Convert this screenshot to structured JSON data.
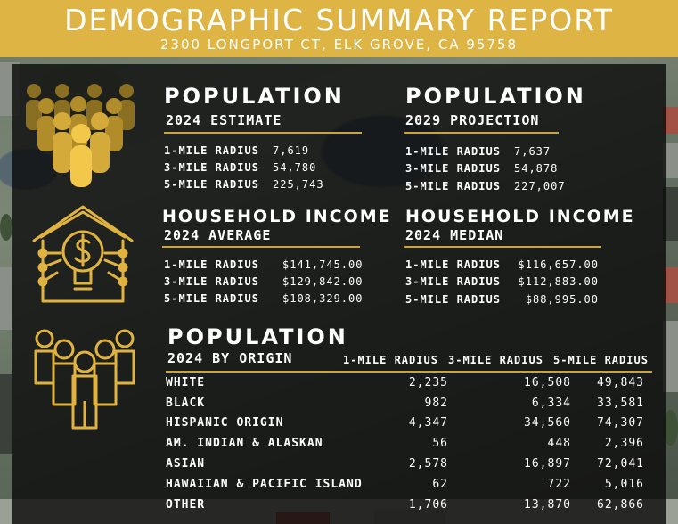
{
  "header": {
    "title": "DEMOGRAPHIC SUMMARY REPORT",
    "address": "2300 LONGPORT CT, ELK GROVE, CA 95758"
  },
  "population_2024": {
    "title": "POPULATION",
    "subtitle": "2024 ESTIMATE",
    "rows": [
      {
        "label": "1-MILE RADIUS",
        "value": "7,619"
      },
      {
        "label": "3-MILE RADIUS",
        "value": "54,780"
      },
      {
        "label": "5-MILE RADIUS",
        "value": "225,743"
      }
    ]
  },
  "population_2029": {
    "title": "POPULATION",
    "subtitle": "2029 PROJECTION",
    "rows": [
      {
        "label": "1-MILE RADIUS",
        "value": "7,637"
      },
      {
        "label": "3-MILE RADIUS",
        "value": "54,878"
      },
      {
        "label": "5-MILE RADIUS",
        "value": "227,007"
      }
    ]
  },
  "income_average": {
    "title": "HOUSEHOLD INCOME",
    "subtitle": "2024 AVERAGE",
    "rows": [
      {
        "label": "1-MILE RADIUS",
        "value": "$141,745.00"
      },
      {
        "label": "3-MILE RADIUS",
        "value": "$129,842.00"
      },
      {
        "label": "5-MILE RADIUS",
        "value": "$108,329.00"
      }
    ]
  },
  "income_median": {
    "title": "HOUSEHOLD INCOME",
    "subtitle": "2024 MEDIAN",
    "rows": [
      {
        "label": "1-MILE RADIUS",
        "value": "$116,657.00"
      },
      {
        "label": "3-MILE RADIUS",
        "value": "$112,883.00"
      },
      {
        "label": "5-MILE RADIUS",
        "value": "$88,995.00"
      }
    ]
  },
  "origin": {
    "title": "POPULATION",
    "subtitle": "2024 BY ORIGIN",
    "columns": [
      "1-MILE RADIUS",
      "3-MILE RADIUS",
      "5-MILE RADIUS"
    ],
    "rows": [
      {
        "name": "WHITE",
        "v1": "2,235",
        "v2": "16,508",
        "v3": "49,843"
      },
      {
        "name": "BLACK",
        "v1": "982",
        "v2": "6,334",
        "v3": "33,581"
      },
      {
        "name": "HISPANIC ORIGIN",
        "v1": "4,347",
        "v2": "34,560",
        "v3": "74,307"
      },
      {
        "name": "AM. INDIAN & ALASKAN",
        "v1": "56",
        "v2": "448",
        "v3": "2,396"
      },
      {
        "name": "ASIAN",
        "v1": "2,578",
        "v2": "16,897",
        "v3": "72,041"
      },
      {
        "name": "HAWAIIAN & PACIFIC ISLAND",
        "v1": "62",
        "v2": "722",
        "v3": "5,016"
      },
      {
        "name": "OTHER",
        "v1": "1,706",
        "v2": "13,870",
        "v3": "62,866"
      }
    ]
  },
  "icons": {
    "crowd": "people-crowd-icon",
    "income": "house-lightbulb-dollar-icon",
    "group": "people-group-icon"
  },
  "colors": {
    "gold": "#deb545",
    "gold_line": "#c9a53a",
    "panel": "#0a0a0a"
  }
}
